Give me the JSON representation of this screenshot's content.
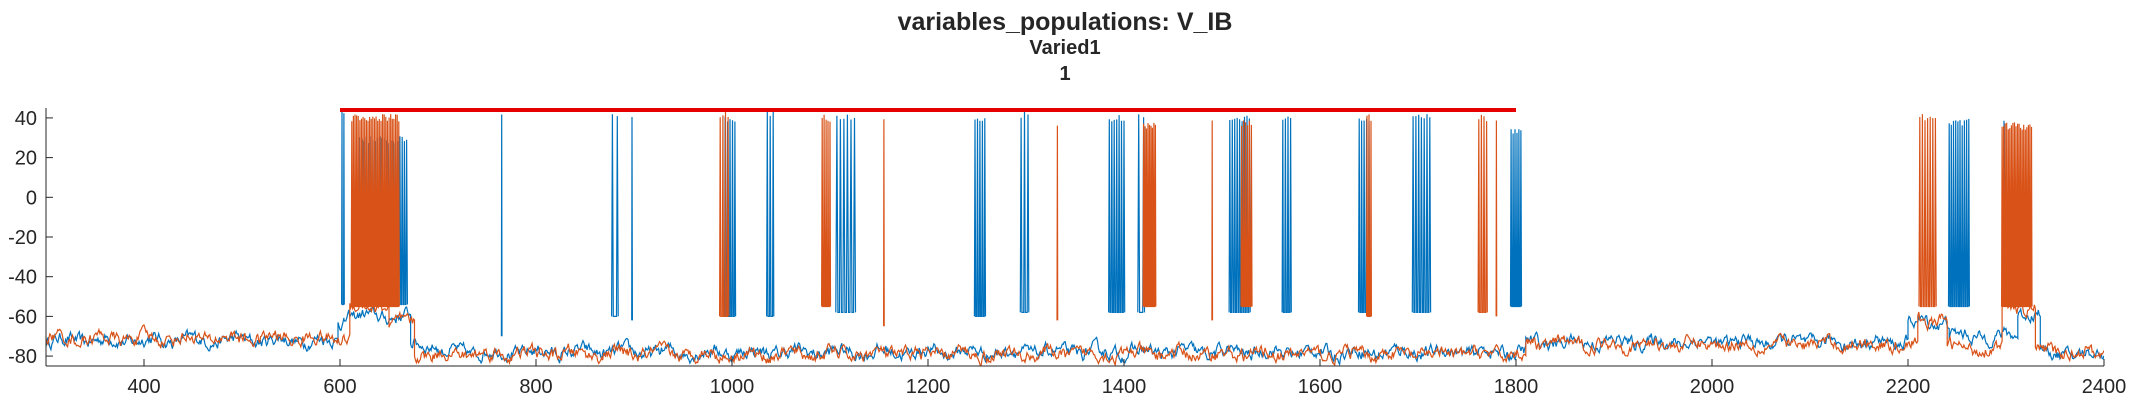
{
  "chart_data": {
    "type": "line",
    "title": "variables_populations: V_IB",
    "subtitle": "Varied1",
    "subtitle2": "1",
    "xlabel": "",
    "ylabel": "",
    "xlim": [
      300,
      2400
    ],
    "ylim": [
      -85,
      45
    ],
    "xticks": [
      400,
      600,
      800,
      1000,
      1200,
      1400,
      1600,
      1800,
      2000,
      2200,
      2400
    ],
    "yticks": [
      40,
      20,
      0,
      -20,
      -40,
      -60,
      -80
    ],
    "grid": false,
    "legend": "none",
    "stim_bar": {
      "x": [
        600,
        1800
      ],
      "y": 44,
      "color": "#e60000"
    },
    "series": [
      {
        "color": "#0072bd",
        "baseline_segments": [
          {
            "x": [
              300,
              598
            ],
            "v": -72
          },
          {
            "x": [
              598,
              604
            ],
            "v": -62
          },
          {
            "x": [
              604,
              672
            ],
            "v": -60
          },
          {
            "x": [
              672,
              700
            ],
            "v": -74
          },
          {
            "x": [
              700,
              1810
            ],
            "v": -78
          },
          {
            "x": [
              1810,
              2200
            ],
            "v": -73
          },
          {
            "x": [
              2200,
              2242
            ],
            "v": -63
          },
          {
            "x": [
              2242,
              2312
            ],
            "v": -70
          },
          {
            "x": [
              2312,
              2335
            ],
            "v": -58
          },
          {
            "x": [
              2335,
              2400
            ],
            "v": -79
          }
        ],
        "bursts": [
          {
            "x": [
              602,
              604
            ],
            "n": 2,
            "peak": 44,
            "trough": -54
          },
          {
            "x": [
              620,
              668
            ],
            "n": 22,
            "peak": 31,
            "trough": -54
          },
          {
            "x": [
              765,
              766
            ],
            "n": 1,
            "peak": 44,
            "trough": -70
          },
          {
            "x": [
              878,
              883
            ],
            "n": 2,
            "peak": 42,
            "trough": -60
          },
          {
            "x": [
              898,
              899
            ],
            "n": 1,
            "peak": 42,
            "trough": -62
          },
          {
            "x": [
              993,
              1003
            ],
            "n": 5,
            "peak": 42,
            "trough": -60
          },
          {
            "x": [
              1036,
              1042
            ],
            "n": 3,
            "peak": 44,
            "trough": -60
          },
          {
            "x": [
              1107,
              1125
            ],
            "n": 6,
            "peak": 42,
            "trough": -58
          },
          {
            "x": [
              1248,
              1258
            ],
            "n": 5,
            "peak": 42,
            "trough": -60
          },
          {
            "x": [
              1295,
              1302
            ],
            "n": 3,
            "peak": 44,
            "trough": -58
          },
          {
            "x": [
              1385,
              1400
            ],
            "n": 7,
            "peak": 42,
            "trough": -58
          },
          {
            "x": [
              1415,
              1420
            ],
            "n": 2,
            "peak": 42,
            "trough": -58
          },
          {
            "x": [
              1508,
              1528
            ],
            "n": 9,
            "peak": 42,
            "trough": -58
          },
          {
            "x": [
              1562,
              1570
            ],
            "n": 4,
            "peak": 42,
            "trough": -58
          },
          {
            "x": [
              1640,
              1650
            ],
            "n": 5,
            "peak": 42,
            "trough": -58
          },
          {
            "x": [
              1695,
              1712
            ],
            "n": 7,
            "peak": 42,
            "trough": -58
          },
          {
            "x": [
              1795,
              1805
            ],
            "n": 6,
            "peak": 36,
            "trough": -55
          },
          {
            "x": [
              2242,
              2262
            ],
            "n": 10,
            "peak": 40,
            "trough": -55
          },
          {
            "x": [
              2298,
              2300
            ],
            "n": 1,
            "peak": 42,
            "trough": -55
          }
        ]
      },
      {
        "color": "#d95319",
        "baseline_segments": [
          {
            "x": [
              300,
              610
            ],
            "v": -71
          },
          {
            "x": [
              610,
              650
            ],
            "v": -55
          },
          {
            "x": [
              650,
              676
            ],
            "v": -64
          },
          {
            "x": [
              676,
              1810
            ],
            "v": -79
          },
          {
            "x": [
              1810,
              2210
            ],
            "v": -74
          },
          {
            "x": [
              2210,
              2240
            ],
            "v": -62
          },
          {
            "x": [
              2240,
              2296
            ],
            "v": -76
          },
          {
            "x": [
              2296,
              2330
            ],
            "v": -56
          },
          {
            "x": [
              2330,
              2400
            ],
            "v": -78
          }
        ],
        "bursts": [
          {
            "x": [
              612,
              660
            ],
            "n": 30,
            "peak": 42,
            "trough": -55
          },
          {
            "x": [
              988,
              996
            ],
            "n": 4,
            "peak": 44,
            "trough": -60
          },
          {
            "x": [
              1092,
              1100
            ],
            "n": 5,
            "peak": 42,
            "trough": -55
          },
          {
            "x": [
              1155,
              1156
            ],
            "n": 1,
            "peak": 40,
            "trough": -65
          },
          {
            "x": [
              1332,
              1333
            ],
            "n": 1,
            "peak": 40,
            "trough": -62
          },
          {
            "x": [
              1420,
              1432
            ],
            "n": 9,
            "peak": 38,
            "trough": -55
          },
          {
            "x": [
              1490,
              1491
            ],
            "n": 1,
            "peak": 42,
            "trough": -62
          },
          {
            "x": [
              1520,
              1530
            ],
            "n": 6,
            "peak": 40,
            "trough": -55
          },
          {
            "x": [
              1648,
              1652
            ],
            "n": 3,
            "peak": 42,
            "trough": -60
          },
          {
            "x": [
              1762,
              1770
            ],
            "n": 4,
            "peak": 42,
            "trough": -58
          },
          {
            "x": [
              1780,
              1781
            ],
            "n": 1,
            "peak": 42,
            "trough": -60
          },
          {
            "x": [
              2212,
              2228
            ],
            "n": 7,
            "peak": 42,
            "trough": -55
          },
          {
            "x": [
              2296,
              2326
            ],
            "n": 20,
            "peak": 38,
            "trough": -55
          }
        ]
      }
    ]
  }
}
